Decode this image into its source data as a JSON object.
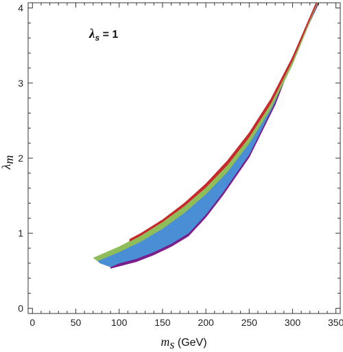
{
  "chart_data": {
    "type": "area",
    "annotation": {
      "symbol": "λ",
      "sub": "s",
      "rest": " = 1"
    },
    "xlabel": {
      "symbol": "m",
      "sub": "s",
      "unit": " (GeV)"
    },
    "ylabel": {
      "symbol": "λ",
      "sub": "m"
    },
    "xlim": [
      -5,
      355
    ],
    "ylim": [
      -0.07,
      4.07
    ],
    "xticks": [
      0,
      50,
      100,
      150,
      200,
      250,
      300,
      350
    ],
    "yticks": [
      0,
      1,
      2,
      3,
      4
    ],
    "grid": false,
    "series": [
      {
        "color": "#7b1e8c",
        "upper": [
          [
            90,
            0.57
          ],
          [
            100,
            0.6
          ],
          [
            120,
            0.66
          ],
          [
            140,
            0.75
          ],
          [
            160,
            0.86
          ],
          [
            180,
            1.0
          ],
          [
            200,
            1.25
          ],
          [
            220,
            1.55
          ],
          [
            250,
            2.05
          ],
          [
            280,
            2.75
          ],
          [
            300,
            3.35
          ],
          [
            330,
            4.1
          ]
        ],
        "lower": [
          [
            90,
            0.53
          ],
          [
            100,
            0.56
          ],
          [
            120,
            0.62
          ],
          [
            140,
            0.71
          ],
          [
            160,
            0.82
          ],
          [
            180,
            0.96
          ],
          [
            200,
            1.21
          ],
          [
            220,
            1.51
          ],
          [
            250,
            2.01
          ],
          [
            280,
            2.71
          ],
          [
            300,
            3.31
          ],
          [
            330,
            4.06
          ]
        ]
      },
      {
        "color": "#4a8fd6",
        "upper": [
          [
            75,
            0.63
          ],
          [
            100,
            0.75
          ],
          [
            125,
            0.89
          ],
          [
            150,
            1.06
          ],
          [
            175,
            1.27
          ],
          [
            200,
            1.52
          ],
          [
            225,
            1.82
          ],
          [
            250,
            2.2
          ],
          [
            275,
            2.66
          ],
          [
            300,
            3.25
          ],
          [
            330,
            4.1
          ]
        ],
        "lower": [
          [
            78,
            0.6
          ],
          [
            90,
            0.55
          ],
          [
            100,
            0.6
          ],
          [
            120,
            0.66
          ],
          [
            140,
            0.75
          ],
          [
            160,
            0.86
          ],
          [
            180,
            1.0
          ],
          [
            200,
            1.25
          ],
          [
            220,
            1.55
          ],
          [
            250,
            2.05
          ],
          [
            280,
            2.75
          ],
          [
            300,
            3.35
          ],
          [
            330,
            4.1
          ]
        ]
      },
      {
        "color": "#8fbd5a",
        "upper": [
          [
            70,
            0.67
          ],
          [
            100,
            0.82
          ],
          [
            125,
            0.97
          ],
          [
            150,
            1.15
          ],
          [
            175,
            1.36
          ],
          [
            200,
            1.61
          ],
          [
            225,
            1.91
          ],
          [
            250,
            2.28
          ],
          [
            275,
            2.73
          ],
          [
            300,
            3.3
          ],
          [
            330,
            4.12
          ]
        ],
        "lower": [
          [
            75,
            0.63
          ],
          [
            100,
            0.75
          ],
          [
            125,
            0.89
          ],
          [
            150,
            1.06
          ],
          [
            175,
            1.27
          ],
          [
            200,
            1.52
          ],
          [
            225,
            1.82
          ],
          [
            250,
            2.2
          ],
          [
            275,
            2.66
          ],
          [
            300,
            3.25
          ],
          [
            330,
            4.1
          ]
        ]
      },
      {
        "color": "#c8282a",
        "upper": [
          [
            112,
            0.92
          ],
          [
            125,
            1.0
          ],
          [
            150,
            1.18
          ],
          [
            175,
            1.4
          ],
          [
            200,
            1.66
          ],
          [
            225,
            1.97
          ],
          [
            250,
            2.34
          ],
          [
            275,
            2.79
          ],
          [
            300,
            3.35
          ],
          [
            330,
            4.15
          ]
        ],
        "lower": [
          [
            112,
            0.89
          ],
          [
            125,
            0.97
          ],
          [
            150,
            1.15
          ],
          [
            175,
            1.36
          ],
          [
            200,
            1.61
          ],
          [
            225,
            1.91
          ],
          [
            250,
            2.28
          ],
          [
            275,
            2.73
          ],
          [
            300,
            3.3
          ],
          [
            330,
            4.12
          ]
        ]
      }
    ]
  }
}
